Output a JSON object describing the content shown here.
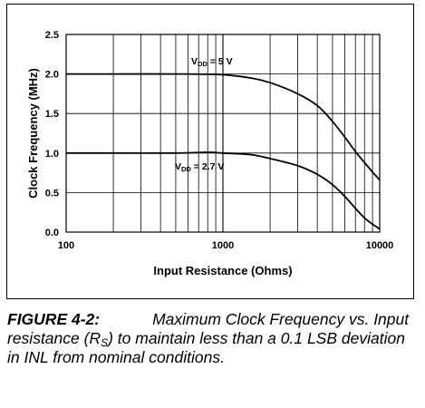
{
  "chart_data": {
    "type": "line",
    "title": "",
    "xlabel": "Input Resistance (Ohms)",
    "ylabel": "Clock Frequency (MHz)",
    "x_scale": "log",
    "xlim": [
      100,
      10000
    ],
    "ylim": [
      0,
      2.5
    ],
    "x_ticks": [
      "100",
      "1000",
      "10000"
    ],
    "y_ticks": [
      "0.0",
      "0.5",
      "1.0",
      "1.5",
      "2.0",
      "2.5"
    ],
    "grid": true,
    "series": [
      {
        "name": "5 V",
        "annotation": {
          "prefix": "V",
          "sub": "DD",
          "rest": " =  5 V"
        },
        "x": [
          100,
          200,
          500,
          1000,
          1500,
          2000,
          3000,
          4000,
          5000,
          6000,
          7000,
          8000,
          9000,
          10000
        ],
        "y": [
          2.0,
          2.0,
          2.0,
          1.99,
          1.95,
          1.89,
          1.75,
          1.6,
          1.4,
          1.2,
          1.02,
          0.88,
          0.76,
          0.66
        ]
      },
      {
        "name": "2.7 V",
        "annotation": {
          "prefix": "V",
          "sub": "DD",
          "rest": " =  2.7 V"
        },
        "x": [
          100,
          200,
          500,
          800,
          1000,
          1500,
          2000,
          3000,
          4000,
          5000,
          6000,
          7000,
          8000,
          9000,
          10000
        ],
        "y": [
          1.0,
          1.0,
          1.0,
          1.01,
          1.0,
          0.98,
          0.93,
          0.84,
          0.73,
          0.6,
          0.45,
          0.3,
          0.18,
          0.1,
          0.04
        ]
      }
    ]
  },
  "caption": {
    "label": "FIGURE 4-2:",
    "text_before_sub": "Maximum Clock Frequency vs. Input resistance (R",
    "sub": "S",
    "text_after_sub": ") to maintain less than a 0.1 LSB deviation in INL from nominal conditions."
  }
}
